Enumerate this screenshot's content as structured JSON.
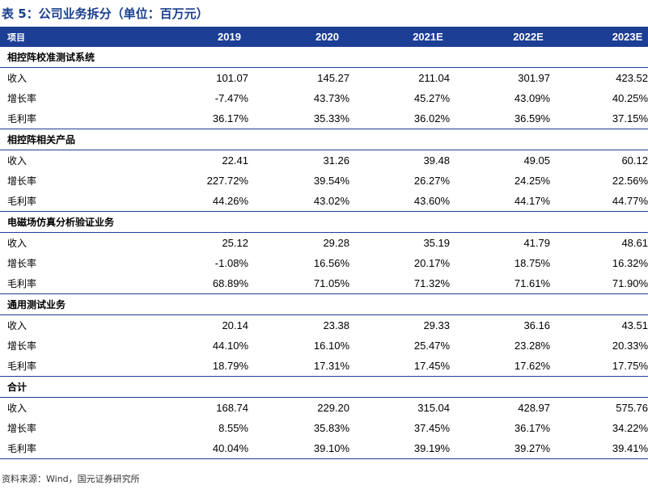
{
  "title": "表 5：公司业务拆分（单位：百万元）",
  "header": {
    "label": "项目",
    "years": [
      "2019",
      "2020",
      "2021E",
      "2022E",
      "2023E"
    ]
  },
  "sections": [
    {
      "name": "相控阵校准测试系统",
      "rows": [
        {
          "label": "收入",
          "values": [
            "101.07",
            "145.27",
            "211.04",
            "301.97",
            "423.52"
          ]
        },
        {
          "label": "增长率",
          "values": [
            "-7.47%",
            "43.73%",
            "45.27%",
            "43.09%",
            "40.25%"
          ]
        },
        {
          "label": "毛利率",
          "values": [
            "36.17%",
            "35.33%",
            "36.02%",
            "36.59%",
            "37.15%"
          ]
        }
      ]
    },
    {
      "name": "相控阵相关产品",
      "rows": [
        {
          "label": "收入",
          "values": [
            "22.41",
            "31.26",
            "39.48",
            "49.05",
            "60.12"
          ]
        },
        {
          "label": "增长率",
          "values": [
            "227.72%",
            "39.54%",
            "26.27%",
            "24.25%",
            "22.56%"
          ]
        },
        {
          "label": "毛利率",
          "values": [
            "44.26%",
            "43.02%",
            "43.60%",
            "44.17%",
            "44.77%"
          ]
        }
      ]
    },
    {
      "name": "电磁场仿真分析验证业务",
      "rows": [
        {
          "label": "收入",
          "values": [
            "25.12",
            "29.28",
            "35.19",
            "41.79",
            "48.61"
          ]
        },
        {
          "label": "增长率",
          "values": [
            "-1.08%",
            "16.56%",
            "20.17%",
            "18.75%",
            "16.32%"
          ]
        },
        {
          "label": "毛利率",
          "values": [
            "68.89%",
            "71.05%",
            "71.32%",
            "71.61%",
            "71.90%"
          ]
        }
      ]
    },
    {
      "name": "通用测试业务",
      "rows": [
        {
          "label": "收入",
          "values": [
            "20.14",
            "23.38",
            "29.33",
            "36.16",
            "43.51"
          ]
        },
        {
          "label": "增长率",
          "values": [
            "44.10%",
            "16.10%",
            "25.47%",
            "23.28%",
            "20.33%"
          ]
        },
        {
          "label": "毛利率",
          "values": [
            "18.79%",
            "17.31%",
            "17.45%",
            "17.62%",
            "17.75%"
          ]
        }
      ]
    },
    {
      "name": "合计",
      "rows": [
        {
          "label": "收入",
          "values": [
            "168.74",
            "229.20",
            "315.04",
            "428.97",
            "575.76"
          ]
        },
        {
          "label": "增长率",
          "values": [
            "8.55%",
            "35.83%",
            "37.45%",
            "36.17%",
            "34.22%"
          ]
        },
        {
          "label": "毛利率",
          "values": [
            "40.04%",
            "39.10%",
            "39.19%",
            "39.27%",
            "39.41%"
          ]
        }
      ]
    }
  ],
  "source": "资料来源：Wind，国元证券研究所",
  "colors": {
    "accent": "#1c3e95",
    "title": "#1a3f8f"
  }
}
